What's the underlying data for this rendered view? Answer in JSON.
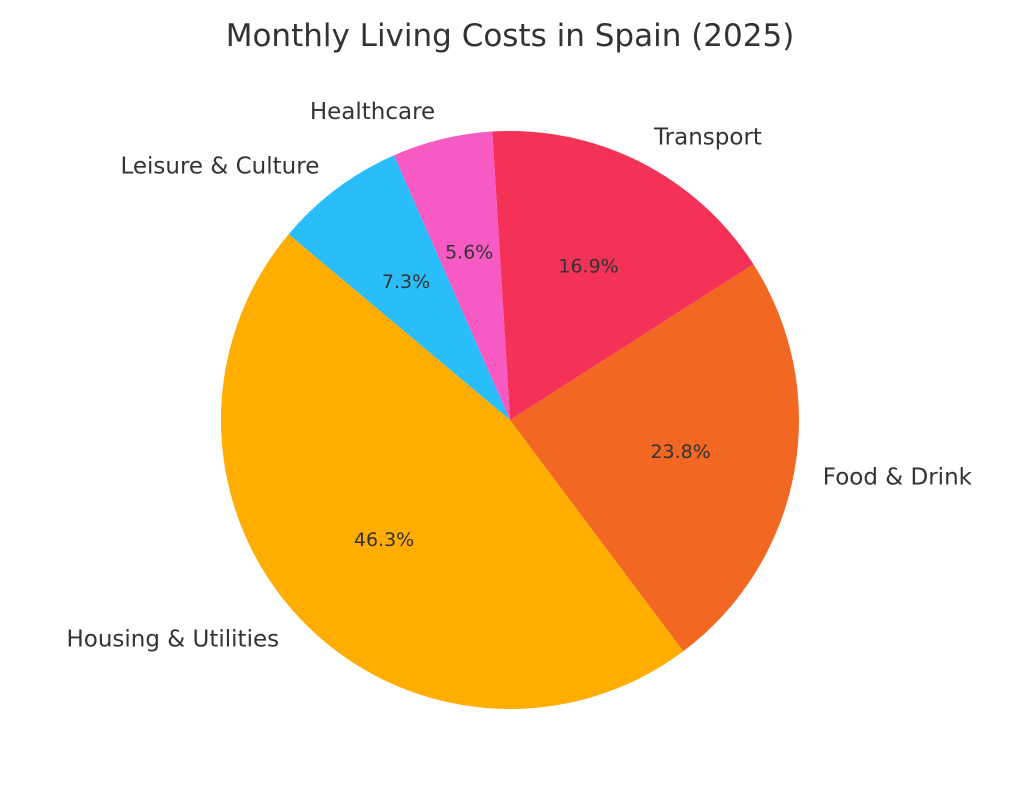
{
  "chart_data": {
    "type": "pie",
    "title": "Monthly Living Costs in Spain (2025)",
    "start_angle": 140,
    "direction": "counterclockwise",
    "slices": [
      {
        "label": "Housing & Utilities",
        "value": 46.3,
        "pct_label": "46.3%",
        "color": "#FFAE00"
      },
      {
        "label": "Food & Drink",
        "value": 23.8,
        "pct_label": "23.8%",
        "color": "#F26722"
      },
      {
        "label": "Transport",
        "value": 16.9,
        "pct_label": "16.9%",
        "color": "#F43156"
      },
      {
        "label": "Healthcare",
        "value": 5.6,
        "pct_label": "5.6%",
        "color": "#F75AC3"
      },
      {
        "label": "Leisure & Culture",
        "value": 7.3,
        "pct_label": "7.3%",
        "color": "#29BDFA"
      }
    ]
  }
}
